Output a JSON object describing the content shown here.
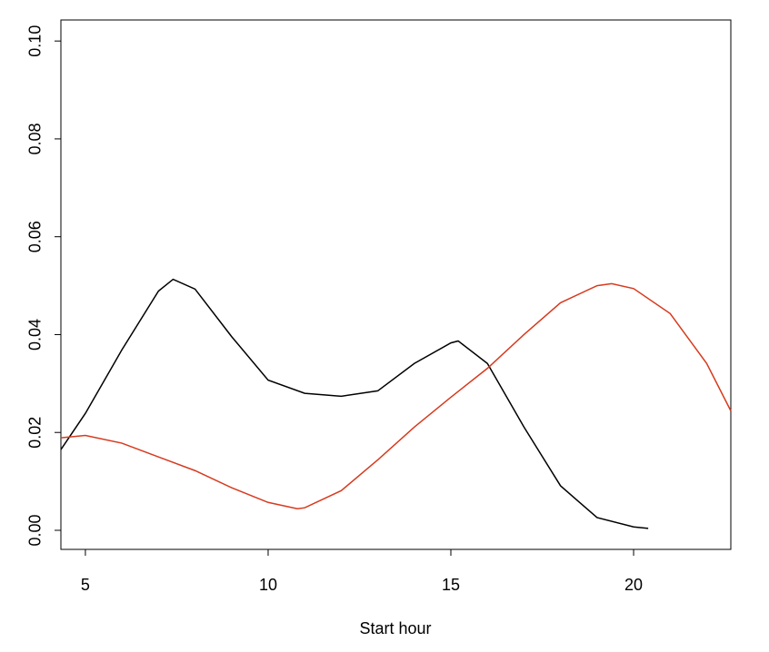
{
  "chart_data": {
    "type": "line",
    "x_label": "Start hour",
    "xlim": [
      4.33,
      22.66
    ],
    "ylim": [
      -0.0039,
      0.1043
    ],
    "xticks": [
      5,
      10,
      15,
      20
    ],
    "yticks": [
      {
        "value": 0,
        "label": "0.00"
      },
      {
        "value": 0.02,
        "label": "0.02"
      },
      {
        "value": 0.04,
        "label": "0.04"
      },
      {
        "value": 0.06,
        "label": "0.06"
      },
      {
        "value": 0.08,
        "label": "0.08"
      },
      {
        "value": 0.1,
        "label": "0.10"
      }
    ],
    "series": [
      {
        "color": "#000000",
        "x": [
          4.33,
          5,
          6,
          7,
          7.4,
          8,
          9,
          10,
          11,
          12,
          13,
          14,
          15,
          15.2,
          16,
          17,
          18,
          19,
          20,
          20.4
        ],
        "values": [
          0.0165,
          0.0239,
          0.0369,
          0.0489,
          0.0513,
          0.0493,
          0.0396,
          0.0307,
          0.028,
          0.0274,
          0.0285,
          0.0341,
          0.0383,
          0.0387,
          0.0341,
          0.0211,
          0.0091,
          0.0026,
          0.0007,
          0.0004
        ]
      },
      {
        "color": "#d63a1e",
        "x": [
          4.33,
          5,
          6,
          7,
          8,
          9,
          10,
          10.8,
          11,
          12,
          13,
          14,
          15,
          16,
          17,
          18,
          19,
          19.4,
          20,
          21,
          22,
          22.66
        ],
        "values": [
          0.0189,
          0.0194,
          0.0178,
          0.015,
          0.0122,
          0.0087,
          0.0057,
          0.0044,
          0.0046,
          0.0081,
          0.0144,
          0.0211,
          0.0272,
          0.0331,
          0.04,
          0.0465,
          0.05,
          0.0504,
          0.0494,
          0.0443,
          0.0341,
          0.0244
        ]
      }
    ]
  }
}
